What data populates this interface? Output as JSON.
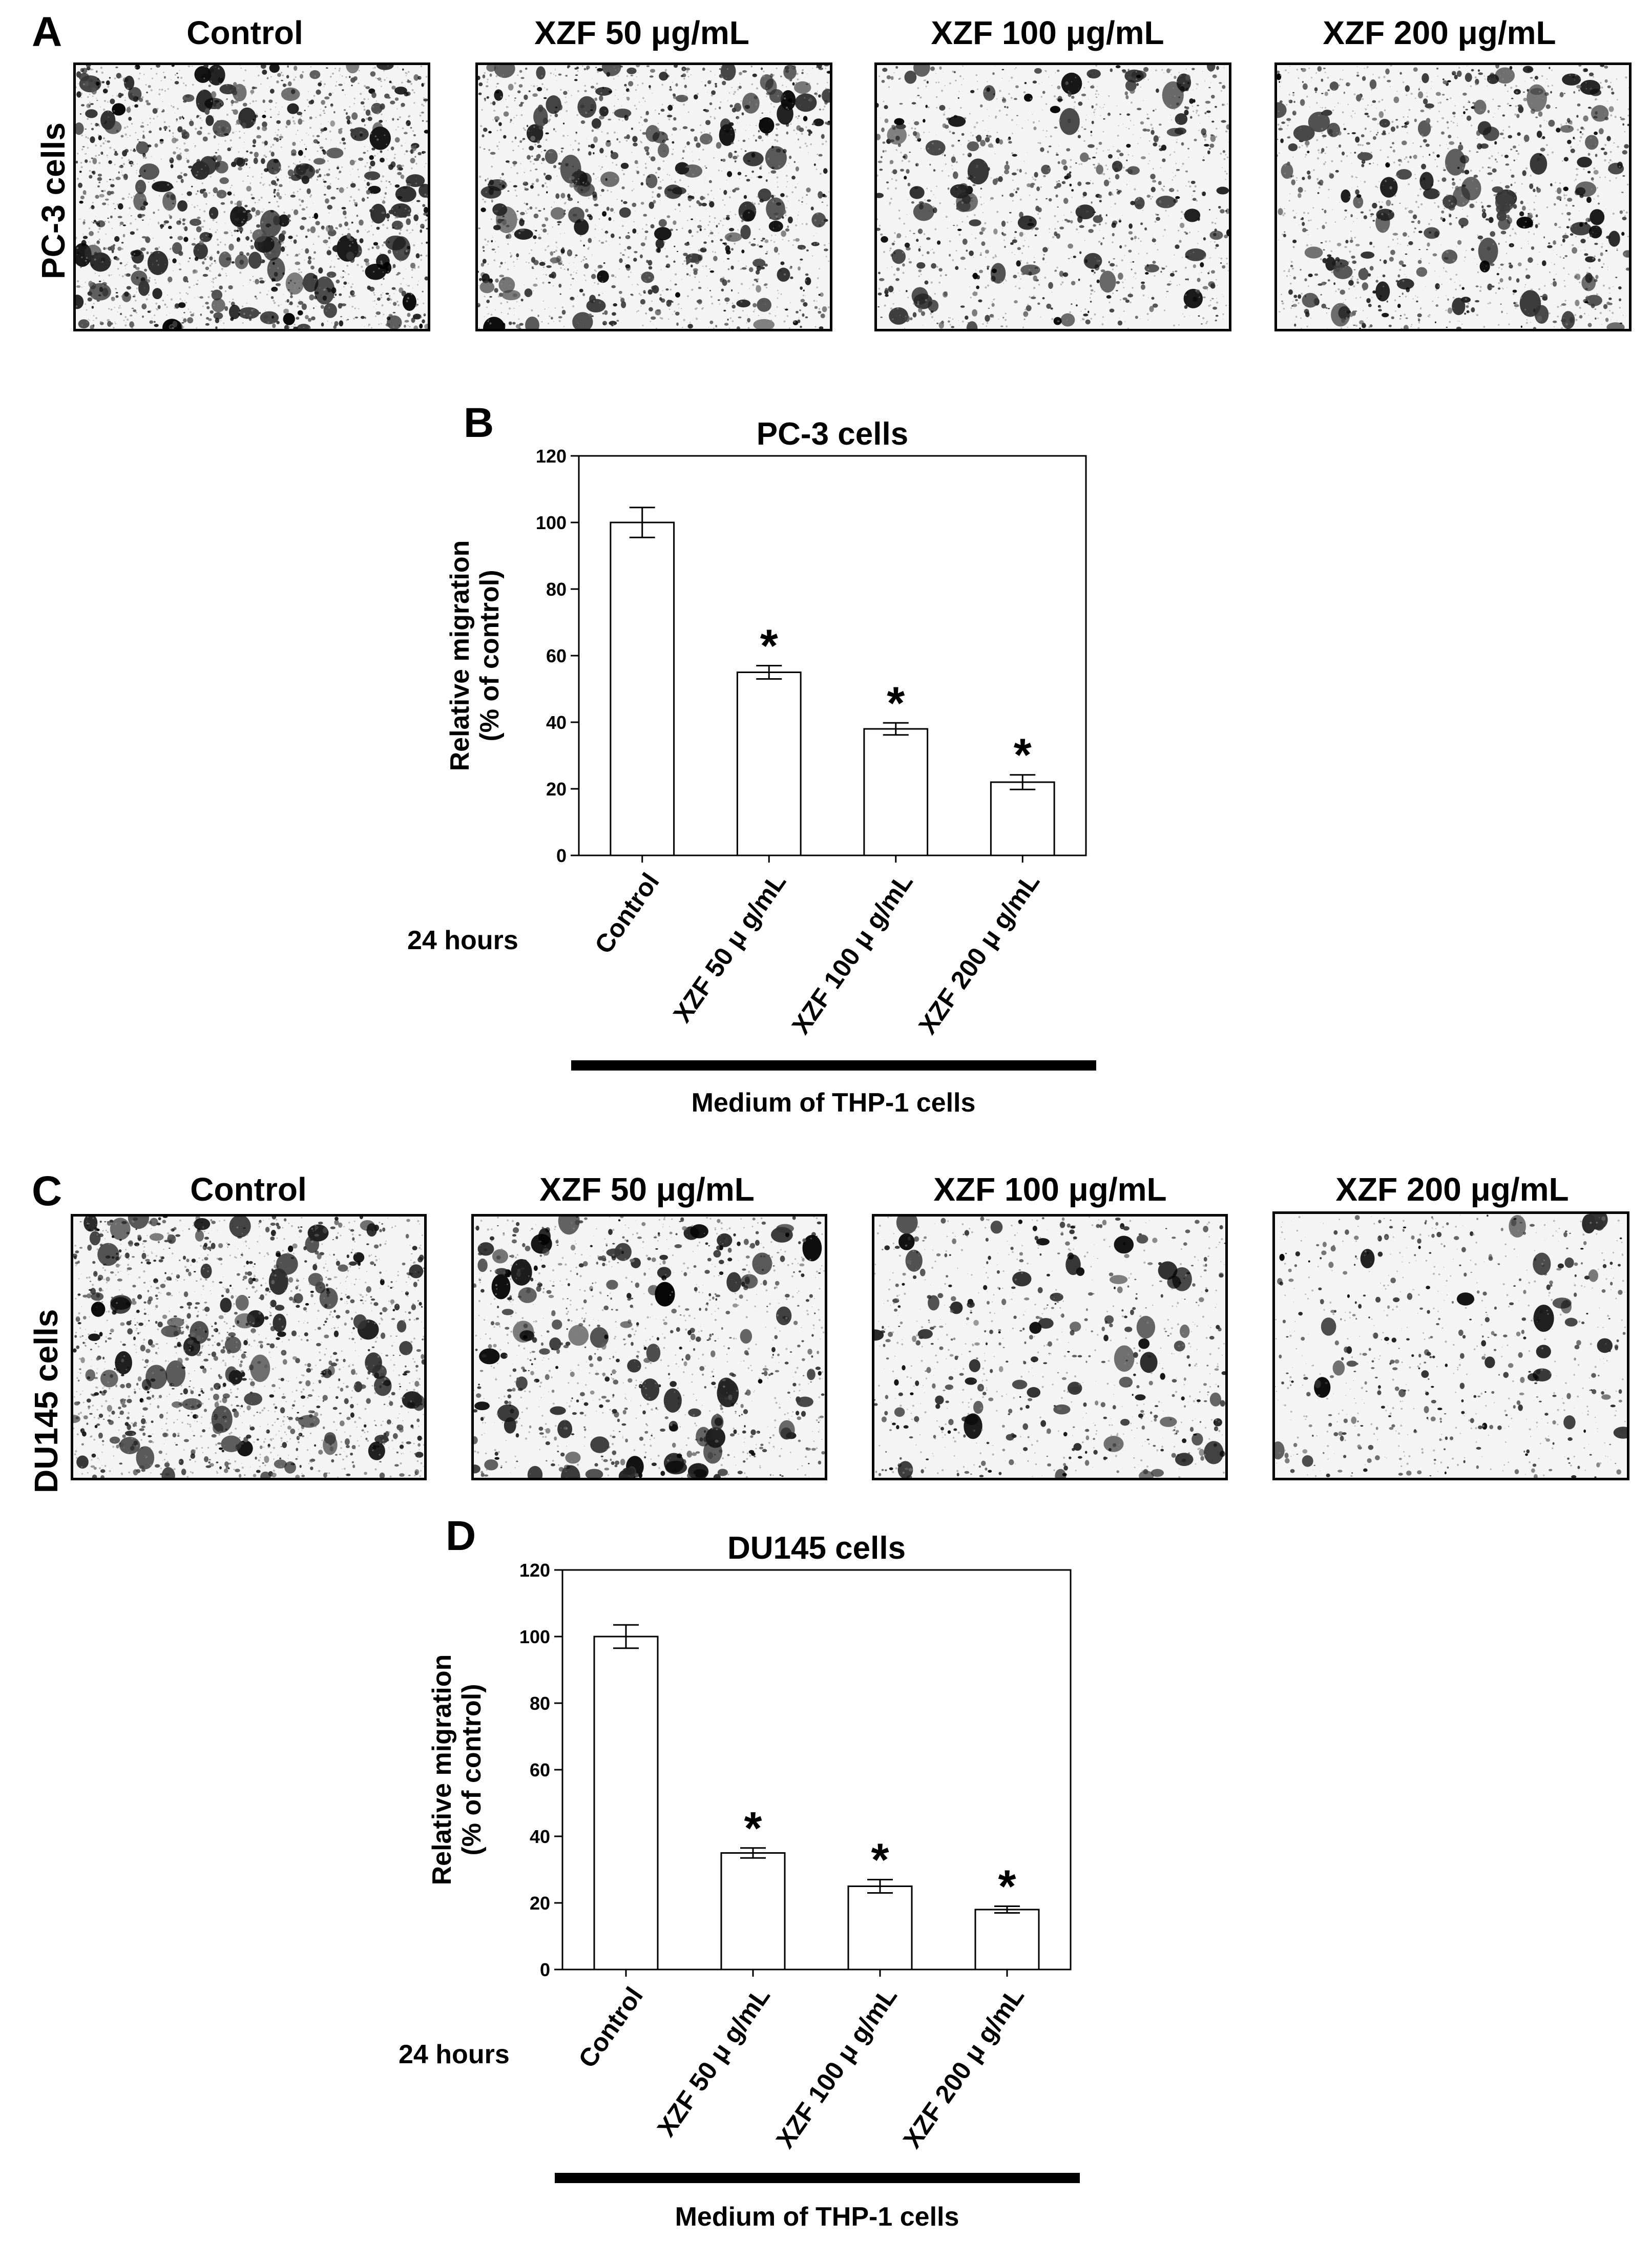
{
  "panels": {
    "a_letter": "A",
    "b_letter": "B",
    "c_letter": "C",
    "d_letter": "D"
  },
  "micrographs_a": {
    "row_label": "PC-3 cells",
    "columns": [
      "Control",
      "XZF 50 μg/mL",
      "XZF 100 μg/mL",
      "XZF 200 μg/mL"
    ],
    "density": [
      0.38,
      0.3,
      0.24,
      0.26
    ]
  },
  "micrographs_c": {
    "row_label": "DU145 cells",
    "columns": [
      "Control",
      "XZF 50 μg/mL",
      "XZF 100 μg/mL",
      "XZF 200 μg/mL"
    ],
    "density": [
      0.34,
      0.22,
      0.16,
      0.14
    ]
  },
  "chart_b_footer": {
    "hours": "24 hours",
    "medium": "Medium of THP-1 cells"
  },
  "chart_d_footer": {
    "hours": "24 hours",
    "medium": "Medium of THP-1 cells"
  },
  "chart_data": [
    {
      "type": "bar",
      "title": "PC-3 cells",
      "ylabel_line1": "Relative migration",
      "ylabel_line2": "(% of control)",
      "categories": [
        "Control",
        "XZF 50  μ g/mL",
        "XZF 100  μ g/mL",
        "XZF 200  μ g/mL"
      ],
      "values": [
        100,
        55,
        38,
        22
      ],
      "errors": [
        4.5,
        2,
        1.8,
        2.2
      ],
      "significance": [
        "",
        "*",
        "*",
        "*"
      ],
      "ylim": [
        0,
        120
      ],
      "yticks": [
        0,
        20,
        40,
        60,
        80,
        100,
        120
      ],
      "bar_fill": "#ffffff",
      "bar_stroke": "#000000"
    },
    {
      "type": "bar",
      "title": "DU145 cells",
      "ylabel_line1": "Relative migration",
      "ylabel_line2": "(% of control)",
      "categories": [
        "Control",
        "XZF 50  μ g/mL",
        "XZF 100  μ g/mL",
        "XZF 200  μ g/mL"
      ],
      "values": [
        100,
        35,
        25,
        18
      ],
      "errors": [
        3.5,
        1.5,
        2,
        1
      ],
      "significance": [
        "",
        "*",
        "*",
        "*"
      ],
      "ylim": [
        0,
        120
      ],
      "yticks": [
        0,
        20,
        40,
        60,
        80,
        100,
        120
      ],
      "bar_fill": "#ffffff",
      "bar_stroke": "#000000"
    }
  ]
}
